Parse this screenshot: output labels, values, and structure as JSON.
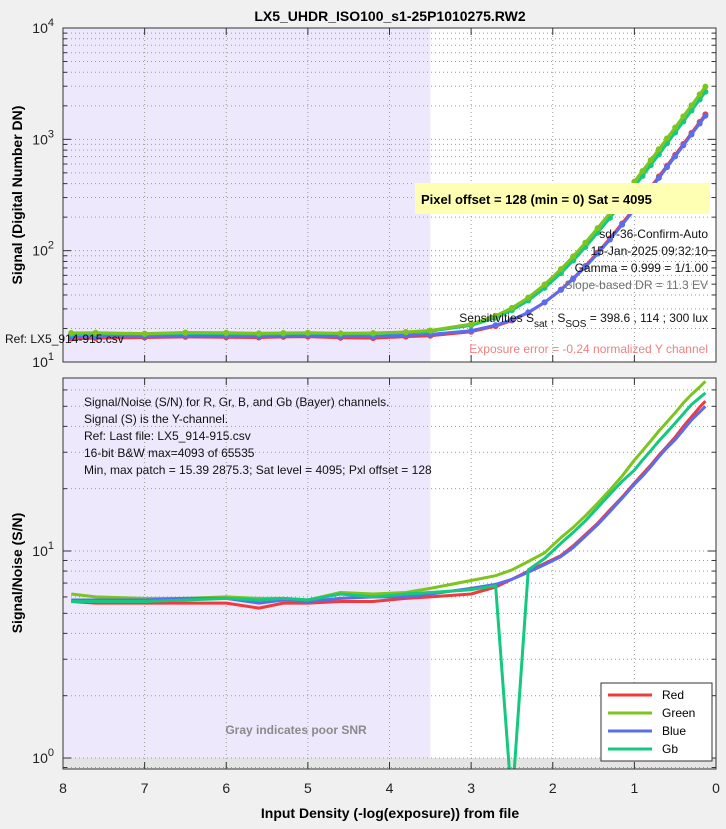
{
  "title": "LX5_UHDR_ISO100_s1-25P1010275.RW2",
  "colors": {
    "Red": "#f23a3a",
    "Green": "#7ec41e",
    "Blue": "#5a6cf0",
    "Gb": "#12c97f",
    "poor_snr_shade": "#eee8fc",
    "gray_band": "#e4e4e4"
  },
  "top_notes": {
    "pixel_offset_box": "Pixel offset = 128  (min = 0)  Sat = 4095",
    "chart_name": "sdr-36-Confirm-Auto",
    "datetime": "15-Jan-2025 09:32:10",
    "gamma": "Gamma = 0.999 = 1/1.00",
    "slope_dr": "Slope-based DR = 11.3 EV",
    "sens_prefix": "Sensitivities S",
    "sens_sub1": "sat",
    "sens_mid": " , S",
    "sens_sub2": "SOS",
    "sens_values": " = 398.6 ,  114 ;  300 lux",
    "exposure_error": "Exposure error = -0.24 normalized Y channel",
    "ref": "Ref: LX5_914-915.csv"
  },
  "bottom_notes": {
    "lines": [
      "Signal/Noise (S/N) for R, Gr, B, and Gb (Bayer) channels.",
      "Signal (S) is the Y-channel.",
      "Ref: Last file: LX5_914-915.csv",
      "16-bit B&W  max=4093 of 65535",
      "Min, max patch = 15.39  2875.3;   Sat level = 4095;   Pxl offset = 128"
    ],
    "gray_note": "Gray indicates poor SNR"
  },
  "chart_data": [
    {
      "type": "line",
      "ylabel": "Signal (Digital Number DN)",
      "xlim": [
        8,
        0
      ],
      "ylim": [
        10,
        10000
      ],
      "yscale": "log",
      "grid": true,
      "markers": true,
      "poor_snr_region": [
        8,
        3.5
      ],
      "x_ticks": [
        "8",
        "7",
        "6",
        "5",
        "4",
        "3",
        "2",
        "1",
        "0"
      ],
      "y_ticks": [
        {
          "base": "10",
          "exp": "1"
        },
        {
          "base": "10",
          "exp": "2"
        },
        {
          "base": "10",
          "exp": "3"
        },
        {
          "base": "10",
          "exp": "4"
        }
      ],
      "x": [
        7.9,
        7.6,
        7.0,
        6.5,
        6.0,
        5.6,
        5.3,
        5.0,
        4.6,
        4.2,
        3.8,
        3.5,
        3.0,
        2.7,
        2.5,
        2.3,
        2.1,
        1.9,
        1.75,
        1.6,
        1.45,
        1.3,
        1.15,
        1.0,
        0.9,
        0.8,
        0.7,
        0.6,
        0.5,
        0.4,
        0.3,
        0.2,
        0.13
      ],
      "series": [
        {
          "name": "Red",
          "values": [
            16.2,
            16.4,
            16.6,
            16.8,
            16.7,
            16.6,
            16.8,
            16.9,
            16.5,
            16.4,
            16.9,
            17.2,
            18.7,
            21,
            23.6,
            27.7,
            34.3,
            44.7,
            56.3,
            72.8,
            96,
            128.5,
            175.5,
            240.5,
            298.5,
            371.5,
            463.5,
            579.5,
            724.5,
            908.5,
            1139.5,
            1429.5,
            1676.5
          ]
        },
        {
          "name": "Blue",
          "values": [
            16.8,
            16.9,
            17.1,
            17.3,
            17.2,
            17.1,
            17.3,
            17.4,
            17,
            16.9,
            17.4,
            17.7,
            19.1,
            21.4,
            23.9,
            27.9,
            34.3,
            44.4,
            55.6,
            71.6,
            94.1,
            125.6,
            171.2,
            234.3,
            290.5,
            361.4,
            450.6,
            563.1,
            703.8,
            882.2,
            1106.3,
            1388.1,
            1627.8
          ]
        },
        {
          "name": "Gb",
          "values": [
            17.9,
            18.0,
            17.8,
            18.1,
            18.0,
            17.8,
            18.0,
            18.1,
            17.9,
            18.0,
            18.4,
            18.9,
            21.3,
            25,
            29.2,
            35.7,
            46.3,
            62.9,
            81.5,
            107.9,
            145,
            197,
            272,
            376,
            469,
            586,
            733,
            919,
            1151,
            1445,
            1815,
            2279,
            2674
          ]
        },
        {
          "name": "Green",
          "values": [
            18.2,
            18.3,
            18.0,
            18.4,
            18.3,
            18.1,
            18.2,
            18.3,
            18.1,
            18.2,
            18.6,
            19.2,
            21.9,
            26,
            30.6,
            38,
            49.7,
            68.2,
            88.8,
            118,
            159.5,
            217,
            301,
            417,
            520,
            650,
            814,
            1020,
            1278,
            1606,
            2017,
            2533,
            2973
          ]
        }
      ]
    },
    {
      "type": "line",
      "xlabel": "Input Density (-log(exposure))   from file",
      "ylabel": "Signal/Noise (S/N)",
      "xlim": [
        8,
        0
      ],
      "ylim": [
        0.885,
        68.5
      ],
      "yscale": "log",
      "grid": true,
      "markers": false,
      "poor_snr_region": [
        8,
        3.5
      ],
      "poor_snr_below": 1,
      "legend": "bottom-right",
      "x_ticks": [
        "8",
        "7",
        "6",
        "5",
        "4",
        "3",
        "2",
        "1",
        "0"
      ],
      "y_ticks": [
        {
          "base": "10",
          "exp": "0"
        },
        {
          "base": "10",
          "exp": "1"
        }
      ],
      "x": [
        7.9,
        7.6,
        7.0,
        6.5,
        6.0,
        5.6,
        5.3,
        5.0,
        4.6,
        4.2,
        3.8,
        3.5,
        3.0,
        2.7,
        2.5,
        2.3,
        2.1,
        1.9,
        1.75,
        1.6,
        1.45,
        1.3,
        1.15,
        1.0,
        0.9,
        0.8,
        0.7,
        0.6,
        0.5,
        0.4,
        0.3,
        0.2,
        0.13
      ],
      "series": [
        {
          "name": "Red",
          "values": [
            5.7,
            5.6,
            5.6,
            5.6,
            5.6,
            5.3,
            5.6,
            5.6,
            5.7,
            5.7,
            5.9,
            6.0,
            6.2,
            6.7,
            7.3,
            8.0,
            8.7,
            9.5,
            10.6,
            12.0,
            13.6,
            15.8,
            18.2,
            21.3,
            23.5,
            26,
            29,
            32,
            35.5,
            40,
            44.5,
            49.5,
            53
          ]
        },
        {
          "name": "Green",
          "values": [
            6.2,
            6.0,
            5.9,
            5.9,
            6.0,
            5.9,
            5.9,
            5.8,
            6.3,
            6.2,
            6.3,
            6.6,
            7.2,
            7.6,
            8.1,
            8.9,
            9.8,
            11.6,
            13.0,
            14.8,
            17,
            19.7,
            23,
            27.5,
            30.5,
            34,
            38,
            42,
            46.5,
            52,
            57,
            62,
            66
          ]
        },
        {
          "name": "Blue",
          "values": [
            5.8,
            5.8,
            5.8,
            5.9,
            5.9,
            5.6,
            5.8,
            5.7,
            5.9,
            6.0,
            6.0,
            6.2,
            6.6,
            6.9,
            7.3,
            7.9,
            8.6,
            9.4,
            10.4,
            11.8,
            13.4,
            15.5,
            18,
            21,
            23,
            25.5,
            28.5,
            31.5,
            34.5,
            38.5,
            43,
            47,
            50
          ]
        },
        {
          "name": "Gb",
          "values": [
            5.7,
            5.7,
            5.7,
            5.8,
            5.9,
            5.8,
            5.9,
            5.8,
            6.2,
            6.0,
            6.2,
            6.3,
            6.5,
            6.8,
            0.6,
            8.1,
            9.2,
            10.9,
            12.3,
            14,
            16.2,
            18.8,
            21.7,
            24.6,
            27.5,
            30.5,
            34,
            37.5,
            41.5,
            46,
            51,
            55,
            58
          ]
        }
      ]
    }
  ]
}
